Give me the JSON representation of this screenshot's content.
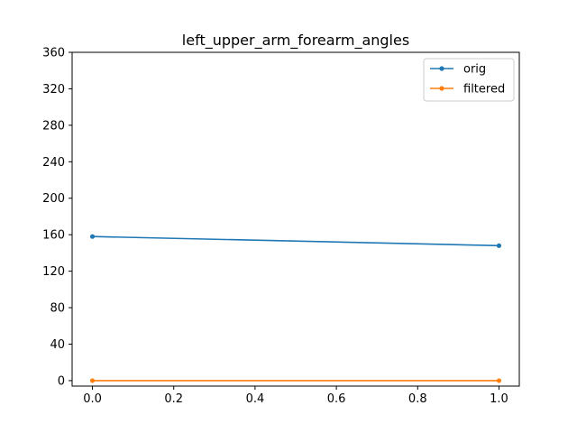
{
  "chart_data": {
    "type": "line",
    "title": "left_upper_arm_forearm_angles",
    "xlabel": "",
    "ylabel": "",
    "xlim": [
      -0.05,
      1.05
    ],
    "ylim": [
      -6,
      360
    ],
    "xticks": [
      0.0,
      0.2,
      0.4,
      0.6,
      0.8,
      1.0
    ],
    "xtick_labels": [
      "0.0",
      "0.2",
      "0.4",
      "0.6",
      "0.8",
      "1.0"
    ],
    "yticks": [
      0,
      40,
      80,
      120,
      160,
      200,
      240,
      280,
      320,
      360
    ],
    "ytick_labels": [
      "0",
      "40",
      "80",
      "120",
      "160",
      "200",
      "240",
      "280",
      "320",
      "360"
    ],
    "grid": false,
    "legend_position": "top-right",
    "series": [
      {
        "name": "orig",
        "color": "#1f77b4",
        "x": [
          0.0,
          1.0
        ],
        "y": [
          158,
          148
        ]
      },
      {
        "name": "filtered",
        "color": "#ff7f0e",
        "x": [
          0.0,
          1.0
        ],
        "y": [
          0,
          0
        ]
      }
    ]
  }
}
